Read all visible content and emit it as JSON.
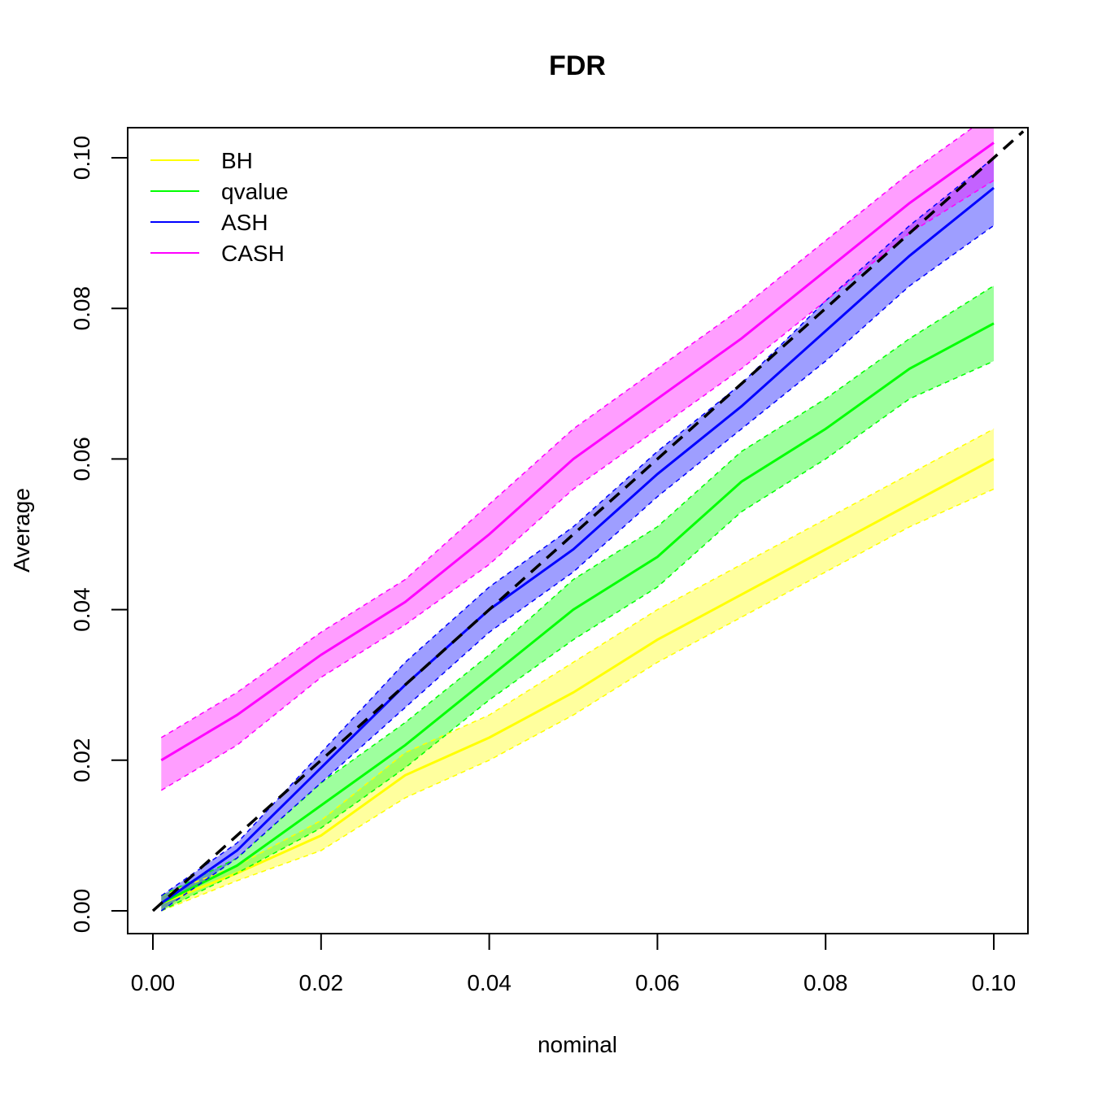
{
  "chart_data": {
    "type": "line",
    "title": "FDR",
    "xlabel": "nominal",
    "ylabel": "Average",
    "xlim": [
      0.0,
      0.1
    ],
    "ylim": [
      0.0,
      0.1
    ],
    "xticks": [
      "0.00",
      "0.02",
      "0.04",
      "0.06",
      "0.08",
      "0.10"
    ],
    "yticks": [
      "0.00",
      "0.02",
      "0.04",
      "0.06",
      "0.08",
      "0.10"
    ],
    "legend_position": "top-left",
    "grid": false,
    "reference_line": {
      "style": "dashed",
      "color": "#000000",
      "slope": 1,
      "intercept": 0
    },
    "x": [
      0.001,
      0.01,
      0.02,
      0.03,
      0.04,
      0.05,
      0.06,
      0.07,
      0.08,
      0.09,
      0.1
    ],
    "series": [
      {
        "name": "BH",
        "color": "#ffff00",
        "values": [
          0.001,
          0.005,
          0.01,
          0.018,
          0.023,
          0.029,
          0.036,
          0.042,
          0.048,
          0.054,
          0.06
        ],
        "lower": [
          0.0,
          0.004,
          0.008,
          0.015,
          0.02,
          0.026,
          0.033,
          0.039,
          0.045,
          0.051,
          0.056
        ],
        "upper": [
          0.002,
          0.006,
          0.012,
          0.021,
          0.026,
          0.033,
          0.04,
          0.046,
          0.052,
          0.058,
          0.064
        ]
      },
      {
        "name": "qvalue",
        "color": "#00ff00",
        "values": [
          0.001,
          0.006,
          0.014,
          0.022,
          0.031,
          0.04,
          0.047,
          0.057,
          0.064,
          0.072,
          0.078
        ],
        "lower": [
          0.0,
          0.005,
          0.011,
          0.019,
          0.028,
          0.036,
          0.043,
          0.053,
          0.06,
          0.068,
          0.073
        ],
        "upper": [
          0.002,
          0.007,
          0.017,
          0.025,
          0.034,
          0.044,
          0.051,
          0.061,
          0.068,
          0.076,
          0.083
        ]
      },
      {
        "name": "ASH",
        "color": "#0000ff",
        "values": [
          0.001,
          0.008,
          0.019,
          0.03,
          0.04,
          0.048,
          0.058,
          0.067,
          0.077,
          0.087,
          0.096
        ],
        "lower": [
          0.0,
          0.007,
          0.017,
          0.027,
          0.037,
          0.045,
          0.055,
          0.064,
          0.073,
          0.083,
          0.091
        ],
        "upper": [
          0.002,
          0.009,
          0.021,
          0.033,
          0.043,
          0.051,
          0.061,
          0.07,
          0.081,
          0.091,
          0.1
        ]
      },
      {
        "name": "CASH",
        "color": "#ff00ff",
        "values": [
          0.02,
          0.026,
          0.034,
          0.041,
          0.05,
          0.06,
          0.068,
          0.076,
          0.085,
          0.094,
          0.102
        ],
        "lower": [
          0.016,
          0.022,
          0.031,
          0.038,
          0.046,
          0.056,
          0.064,
          0.072,
          0.081,
          0.09,
          0.097
        ],
        "upper": [
          0.023,
          0.029,
          0.037,
          0.044,
          0.054,
          0.064,
          0.072,
          0.08,
          0.089,
          0.098,
          0.106
        ]
      }
    ]
  }
}
